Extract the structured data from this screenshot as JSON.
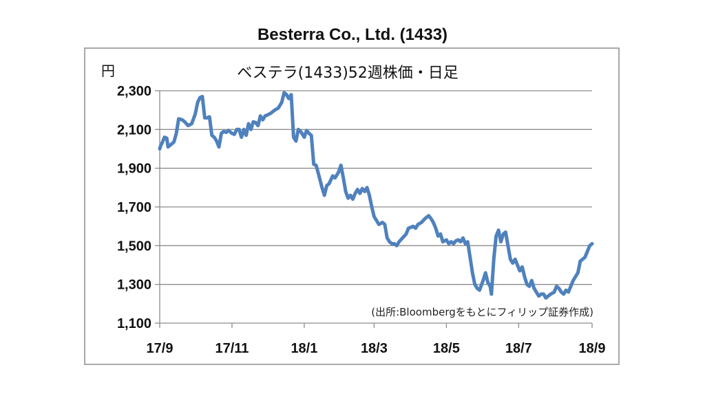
{
  "chart_data": {
    "type": "line",
    "title": "Besterra Co., Ltd. (1433)",
    "subtitle": "ベステラ(1433)52週株価・日足",
    "ylabel": "円",
    "source": "(出所:Bloombergをもとにフィリップ証券作成)",
    "ylim": [
      1100,
      2300
    ],
    "yticks": [
      1100,
      1300,
      1500,
      1700,
      1900,
      2100,
      2300
    ],
    "ytick_labels": [
      "1,100",
      "1,300",
      "1,500",
      "1,700",
      "1,900",
      "2,100",
      "2,300"
    ],
    "xlim": [
      "2017-09-01",
      "2018-09-01"
    ],
    "xticks": [
      "2017-09-01",
      "2017-11-01",
      "2018-01-01",
      "2018-03-01",
      "2018-05-01",
      "2018-07-01",
      "2018-09-01"
    ],
    "xtick_labels": [
      "17/9",
      "17/11",
      "18/1",
      "18/3",
      "18/5",
      "18/7",
      "18/9"
    ],
    "grid": true,
    "line_color": "#4F81BD",
    "series": [
      {
        "points": [
          [
            "2017-09-01",
            2000
          ],
          [
            "2017-09-02",
            2020
          ],
          [
            "2017-09-03",
            2030
          ],
          [
            "2017-09-05",
            2060
          ],
          [
            "2017-09-07",
            2055
          ],
          [
            "2017-09-08",
            2010
          ],
          [
            "2017-09-10",
            2020
          ],
          [
            "2017-09-13",
            2035
          ],
          [
            "2017-09-15",
            2080
          ],
          [
            "2017-09-17",
            2155
          ],
          [
            "2017-09-20",
            2150
          ],
          [
            "2017-09-22",
            2140
          ],
          [
            "2017-09-25",
            2120
          ],
          [
            "2017-09-28",
            2130
          ],
          [
            "2017-10-01",
            2180
          ],
          [
            "2017-10-03",
            2240
          ],
          [
            "2017-10-05",
            2265
          ],
          [
            "2017-10-07",
            2270
          ],
          [
            "2017-10-09",
            2160
          ],
          [
            "2017-10-11",
            2160
          ],
          [
            "2017-10-13",
            2165
          ],
          [
            "2017-10-15",
            2070
          ],
          [
            "2017-10-17",
            2060
          ],
          [
            "2017-10-19",
            2040
          ],
          [
            "2017-10-21",
            2010
          ],
          [
            "2017-10-23",
            2080
          ],
          [
            "2017-10-25",
            2090
          ],
          [
            "2017-10-27",
            2085
          ],
          [
            "2017-10-29",
            2095
          ],
          [
            "2017-11-01",
            2080
          ],
          [
            "2017-11-03",
            2075
          ],
          [
            "2017-11-05",
            2100
          ],
          [
            "2017-11-07",
            2100
          ],
          [
            "2017-11-09",
            2060
          ],
          [
            "2017-11-11",
            2100
          ],
          [
            "2017-11-13",
            2070
          ],
          [
            "2017-11-15",
            2130
          ],
          [
            "2017-11-17",
            2100
          ],
          [
            "2017-11-19",
            2140
          ],
          [
            "2017-11-21",
            2135
          ],
          [
            "2017-11-23",
            2120
          ],
          [
            "2017-11-25",
            2170
          ],
          [
            "2017-11-27",
            2150
          ],
          [
            "2017-11-29",
            2170
          ],
          [
            "2017-12-01",
            2175
          ],
          [
            "2017-12-04",
            2185
          ],
          [
            "2017-12-07",
            2200
          ],
          [
            "2017-12-10",
            2210
          ],
          [
            "2017-12-13",
            2240
          ],
          [
            "2017-12-15",
            2290
          ],
          [
            "2017-12-17",
            2280
          ],
          [
            "2017-12-19",
            2260
          ],
          [
            "2017-12-21",
            2280
          ],
          [
            "2017-12-23",
            2060
          ],
          [
            "2017-12-25",
            2040
          ],
          [
            "2017-12-27",
            2100
          ],
          [
            "2017-12-29",
            2090
          ],
          [
            "2018-01-01",
            2060
          ],
          [
            "2018-01-03",
            2095
          ],
          [
            "2018-01-05",
            2080
          ],
          [
            "2018-01-07",
            2070
          ],
          [
            "2018-01-09",
            1920
          ],
          [
            "2018-01-11",
            1915
          ],
          [
            "2018-01-13",
            1870
          ],
          [
            "2018-01-16",
            1800
          ],
          [
            "2018-01-18",
            1760
          ],
          [
            "2018-01-20",
            1810
          ],
          [
            "2018-01-22",
            1820
          ],
          [
            "2018-01-25",
            1860
          ],
          [
            "2018-01-27",
            1850
          ],
          [
            "2018-01-30",
            1880
          ],
          [
            "2018-02-01",
            1915
          ],
          [
            "2018-02-03",
            1850
          ],
          [
            "2018-02-05",
            1780
          ],
          [
            "2018-02-07",
            1745
          ],
          [
            "2018-02-09",
            1760
          ],
          [
            "2018-02-11",
            1740
          ],
          [
            "2018-02-13",
            1770
          ],
          [
            "2018-02-15",
            1790
          ],
          [
            "2018-02-17",
            1770
          ],
          [
            "2018-02-19",
            1795
          ],
          [
            "2018-02-21",
            1780
          ],
          [
            "2018-02-23",
            1800
          ],
          [
            "2018-02-25",
            1760
          ],
          [
            "2018-02-27",
            1700
          ],
          [
            "2018-03-01",
            1650
          ],
          [
            "2018-03-03",
            1630
          ],
          [
            "2018-03-05",
            1610
          ],
          [
            "2018-03-08",
            1620
          ],
          [
            "2018-03-10",
            1610
          ],
          [
            "2018-03-12",
            1540
          ],
          [
            "2018-03-14",
            1520
          ],
          [
            "2018-03-16",
            1510
          ],
          [
            "2018-03-18",
            1510
          ],
          [
            "2018-03-20",
            1500
          ],
          [
            "2018-03-22",
            1520
          ],
          [
            "2018-03-25",
            1540
          ],
          [
            "2018-03-28",
            1560
          ],
          [
            "2018-03-30",
            1590
          ],
          [
            "2018-04-01",
            1595
          ],
          [
            "2018-04-03",
            1600
          ],
          [
            "2018-04-05",
            1590
          ],
          [
            "2018-04-07",
            1610
          ],
          [
            "2018-04-10",
            1620
          ],
          [
            "2018-04-13",
            1640
          ],
          [
            "2018-04-16",
            1655
          ],
          [
            "2018-04-18",
            1640
          ],
          [
            "2018-04-20",
            1620
          ],
          [
            "2018-04-22",
            1590
          ],
          [
            "2018-04-24",
            1550
          ],
          [
            "2018-04-26",
            1560
          ],
          [
            "2018-04-28",
            1520
          ],
          [
            "2018-05-01",
            1530
          ],
          [
            "2018-05-03",
            1510
          ],
          [
            "2018-05-05",
            1520
          ],
          [
            "2018-05-07",
            1510
          ],
          [
            "2018-05-09",
            1525
          ],
          [
            "2018-05-11",
            1530
          ],
          [
            "2018-05-13",
            1520
          ],
          [
            "2018-05-15",
            1540
          ],
          [
            "2018-05-17",
            1510
          ],
          [
            "2018-05-19",
            1520
          ],
          [
            "2018-05-21",
            1440
          ],
          [
            "2018-05-23",
            1360
          ],
          [
            "2018-05-25",
            1300
          ],
          [
            "2018-05-27",
            1280
          ],
          [
            "2018-05-29",
            1270
          ],
          [
            "2018-06-01",
            1320
          ],
          [
            "2018-06-03",
            1360
          ],
          [
            "2018-06-05",
            1310
          ],
          [
            "2018-06-07",
            1290
          ],
          [
            "2018-06-08",
            1250
          ],
          [
            "2018-06-10",
            1430
          ],
          [
            "2018-06-12",
            1550
          ],
          [
            "2018-06-14",
            1580
          ],
          [
            "2018-06-16",
            1520
          ],
          [
            "2018-06-18",
            1560
          ],
          [
            "2018-06-20",
            1570
          ],
          [
            "2018-06-22",
            1500
          ],
          [
            "2018-06-24",
            1430
          ],
          [
            "2018-06-26",
            1410
          ],
          [
            "2018-06-28",
            1430
          ],
          [
            "2018-06-30",
            1400
          ],
          [
            "2018-07-02",
            1370
          ],
          [
            "2018-07-04",
            1390
          ],
          [
            "2018-07-06",
            1340
          ],
          [
            "2018-07-08",
            1300
          ],
          [
            "2018-07-10",
            1290
          ],
          [
            "2018-07-12",
            1320
          ],
          [
            "2018-07-14",
            1280
          ],
          [
            "2018-07-16",
            1260
          ],
          [
            "2018-07-18",
            1240
          ],
          [
            "2018-07-20",
            1250
          ],
          [
            "2018-07-22",
            1250
          ],
          [
            "2018-07-24",
            1230
          ],
          [
            "2018-07-26",
            1240
          ],
          [
            "2018-07-28",
            1250
          ],
          [
            "2018-07-31",
            1260
          ],
          [
            "2018-08-02",
            1290
          ],
          [
            "2018-08-04",
            1280
          ],
          [
            "2018-08-06",
            1260
          ],
          [
            "2018-08-08",
            1250
          ],
          [
            "2018-08-10",
            1270
          ],
          [
            "2018-08-12",
            1260
          ],
          [
            "2018-08-14",
            1290
          ],
          [
            "2018-08-16",
            1320
          ],
          [
            "2018-08-18",
            1340
          ],
          [
            "2018-08-20",
            1360
          ],
          [
            "2018-08-22",
            1420
          ],
          [
            "2018-08-24",
            1430
          ],
          [
            "2018-08-26",
            1440
          ],
          [
            "2018-08-28",
            1470
          ],
          [
            "2018-08-30",
            1500
          ],
          [
            "2018-09-01",
            1510
          ]
        ]
      }
    ]
  }
}
